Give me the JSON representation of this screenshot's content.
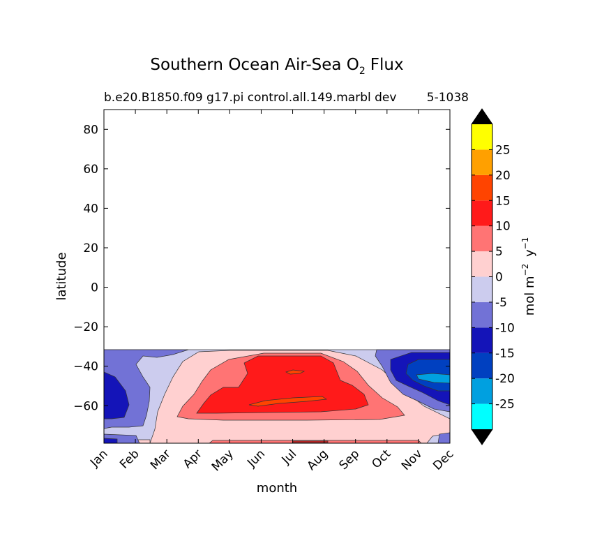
{
  "chart_data": {
    "type": "heatmap",
    "title": "Southern Ocean Air-Sea O",
    "title_subscript": "2",
    "title_suffix": "Flux",
    "subtitle": "b.e20.B1850.f09 g17.pi control.all.149.marbl dev",
    "subtitle_right": "5-1038",
    "xlabel": "month",
    "ylabel": "latitude",
    "x_categories": [
      "Jan",
      "Feb",
      "Mar",
      "Apr",
      "May",
      "Jun",
      "Jul",
      "Aug",
      "Sep",
      "Oct",
      "Nov",
      "Dec"
    ],
    "xlim": [
      0,
      11
    ],
    "ylim": [
      -79,
      90
    ],
    "y_ticks": [
      80,
      60,
      40,
      20,
      0,
      -20,
      -40,
      -60
    ],
    "y_tick_labels": [
      "80",
      "60",
      "40",
      "20",
      "0",
      "−20",
      "−40",
      "−60"
    ],
    "data_lat_range": [
      -79,
      -32
    ],
    "colorbar": {
      "label": "mol m",
      "label_sup1": "−2",
      "label_mid": " y",
      "label_sup2": "−1",
      "levels": [
        -30,
        -25,
        -20,
        -15,
        -10,
        -5,
        0,
        5,
        10,
        15,
        20,
        25,
        30
      ],
      "tick_values": [
        -25,
        -20,
        -15,
        -10,
        -5,
        0,
        5,
        10,
        15,
        20,
        25
      ],
      "tick_labels": [
        "-25",
        "-20",
        "-15",
        "-10",
        "-5",
        "0",
        "5",
        "10",
        "15",
        "20",
        "25"
      ],
      "colors": [
        "#00ffff",
        "#00a0e0",
        "#0040c0",
        "#1414b8",
        "#7272d6",
        "#ccccee",
        "#ffd0d0",
        "#ff7474",
        "#ff1a1a",
        "#ff4400",
        "#ffa000",
        "#ffff00"
      ],
      "extend": "both",
      "extend_color": "#000000"
    }
  }
}
